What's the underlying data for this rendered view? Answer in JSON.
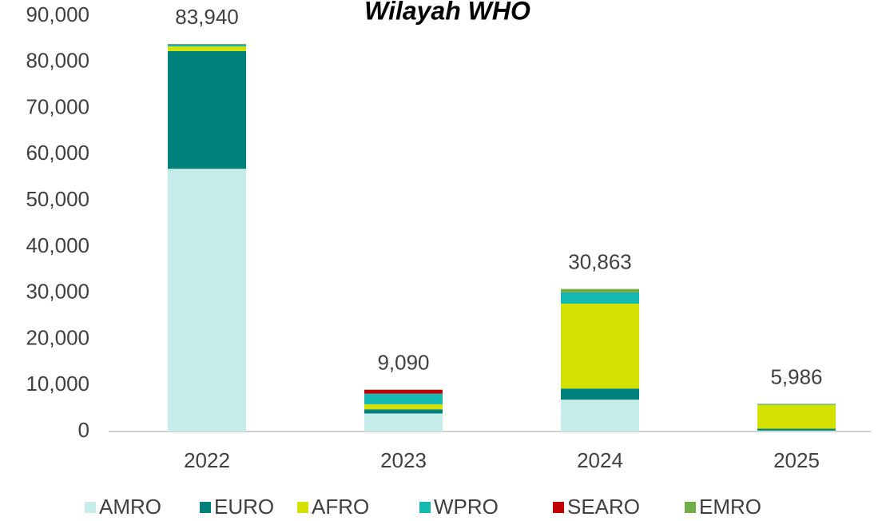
{
  "chart_data": {
    "type": "stacked_bar",
    "title": "Wilayah WHO",
    "categories": [
      "2022",
      "2023",
      "2024",
      "2025"
    ],
    "series": [
      {
        "name": "AMRO",
        "color": "#c5ece8",
        "values": [
          56900,
          3900,
          6900,
          200
        ]
      },
      {
        "name": "EURO",
        "color": "#00807a",
        "values": [
          25500,
          900,
          2400,
          400
        ]
      },
      {
        "name": "AFRO",
        "color": "#d4e000",
        "values": [
          1000,
          1100,
          18400,
          5200
        ]
      },
      {
        "name": "WPRO",
        "color": "#14b8b2",
        "values": [
          400,
          2300,
          2400,
          150
        ]
      },
      {
        "name": "SEARO",
        "color": "#c00000",
        "values": [
          40,
          850,
          50,
          20
        ]
      },
      {
        "name": "EMRO",
        "color": "#70ad47",
        "values": [
          100,
          40,
          713,
          16
        ]
      }
    ],
    "totals": {
      "values": [
        83940,
        9090,
        30863,
        5986
      ],
      "value_labels": [
        "83,940",
        "9,090",
        "30,863",
        "5,986"
      ]
    },
    "ylim": [
      0,
      90000
    ],
    "yticks": [
      0,
      {
        "value": 10000,
        "label": "10,000"
      },
      {
        "value": 20000,
        "label": "20,000"
      },
      {
        "value": 30000,
        "label": "30,000"
      },
      {
        "value": 40000,
        "label": "40,000"
      },
      {
        "value": 50000,
        "label": "50,000"
      },
      {
        "value": 60000,
        "label": "60,000"
      },
      {
        "value": 70000,
        "label": "70,000"
      },
      {
        "value": 80000,
        "label": "80,000"
      },
      {
        "value": 90000,
        "label": "90,000"
      }
    ],
    "grid": false,
    "legend": "bottom"
  }
}
